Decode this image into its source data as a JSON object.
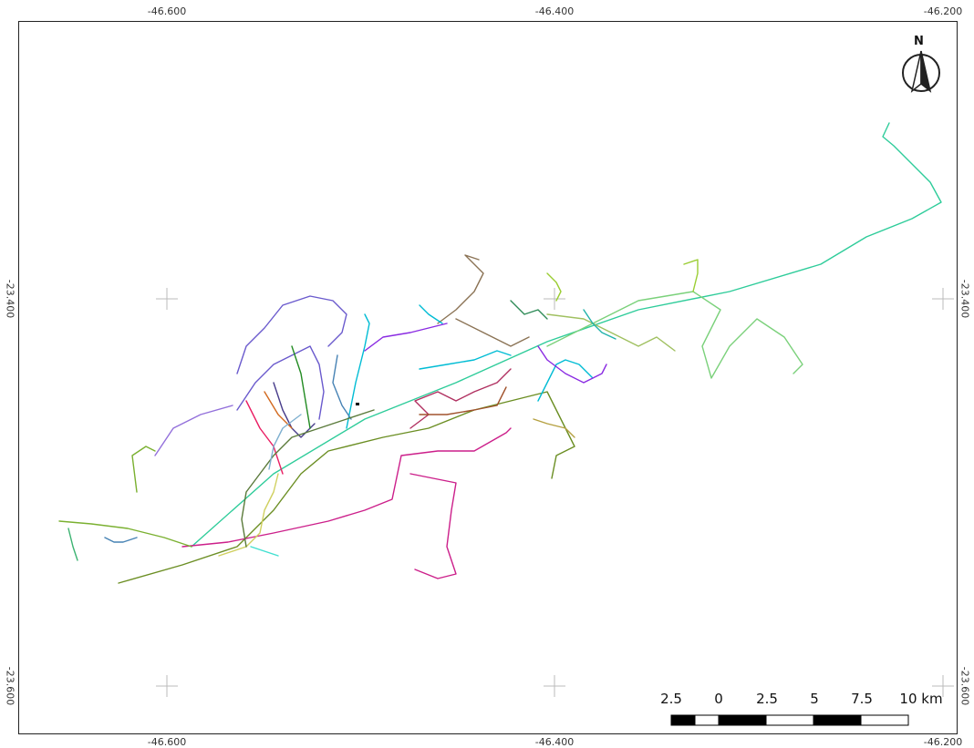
{
  "grid": {
    "lon_labels": [
      "-46.600",
      "-46.400",
      "-46.200"
    ],
    "lat_labels": [
      "-23.400",
      "-23.600"
    ]
  },
  "north_arrow": {
    "label": "N",
    "icon": "north-arrow-icon"
  },
  "scale_bar": {
    "labels": [
      "2.5",
      "0",
      "2.5",
      "5",
      "7.5",
      "10 km"
    ],
    "fill_color": "#000000",
    "empty_color": "#ffffff"
  },
  "route_colors": [
    "#2ecc9a",
    "#7bd17b",
    "#9acd32",
    "#8a2be2",
    "#cc1f8a",
    "#a0522d",
    "#00bcd4",
    "#5a7a3a",
    "#6a5acd",
    "#e91e63"
  ]
}
